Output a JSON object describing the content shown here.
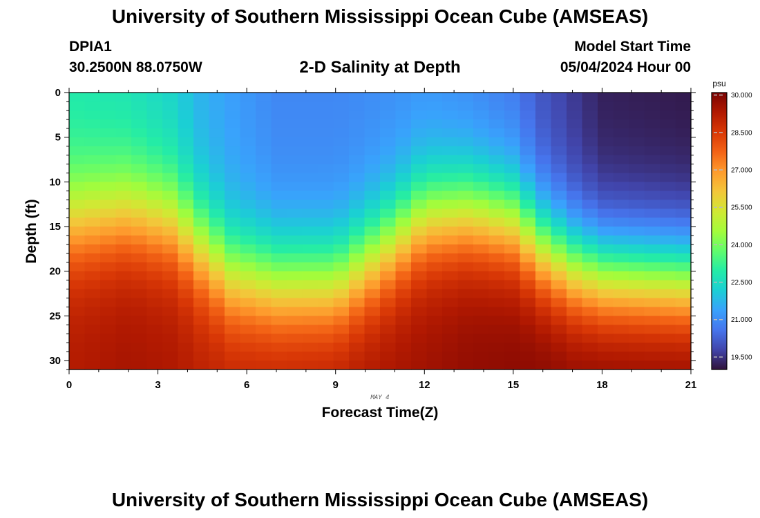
{
  "header": {
    "title": "University of Southern Mississippi Ocean Cube (AMSEAS)",
    "station_id": "DPIA1",
    "station_coords": "30.2500N  88.0750W",
    "plot_title": "2-D Salinity at Depth",
    "start_label": "Model Start Time",
    "start_value": "05/04/2024 Hour 00"
  },
  "footer": {
    "title": "University of Southern Mississippi Ocean Cube (AMSEAS)"
  },
  "chart_data": {
    "type": "heatmap",
    "title": "2-D Salinity at Depth",
    "xlabel": "Forecast Time(Z)",
    "ylabel": "Depth (ft)",
    "date_label": "MAY 4",
    "x_ticks": [
      0,
      3,
      6,
      9,
      12,
      15,
      18,
      21
    ],
    "y_ticks": [
      0,
      5,
      10,
      15,
      20,
      25,
      30
    ],
    "xlim": [
      0,
      21
    ],
    "ylim": [
      0,
      31
    ],
    "colorbar": {
      "unit": "psu",
      "min": 19.0,
      "max": 30.1,
      "ticks": [
        "30.000",
        "28.500",
        "27.000",
        "25.500",
        "24.000",
        "22.500",
        "21.000",
        "19.500"
      ],
      "colors": [
        "#30123b",
        "#4145ab",
        "#4675ed",
        "#39a2fc",
        "#1bcfd4",
        "#24eca6",
        "#61fc6c",
        "#a4fc3b",
        "#d1e834",
        "#f3c63a",
        "#fe9b2d",
        "#f36315",
        "#d93806",
        "#b11901",
        "#7a0403"
      ]
    },
    "profile_hours": [
      0,
      2,
      3.5,
      4.5,
      5.5,
      7,
      9,
      10.5,
      12,
      13.5,
      15,
      16,
      17,
      18,
      21
    ],
    "halocline_depth_ft": [
      14.5,
      13.5,
      14.5,
      17.5,
      20.5,
      21.5,
      21.5,
      18.0,
      14.0,
      13.5,
      14.5,
      17.5,
      19.5,
      20.5,
      21.0
    ],
    "surface_salinity_psu": [
      22.8,
      22.6,
      22.2,
      21.6,
      21.3,
      20.9,
      20.9,
      21.0,
      21.1,
      20.9,
      20.6,
      20.0,
      19.6,
      19.2,
      19.1
    ],
    "bottom_salinity_psu": [
      29.3,
      29.5,
      29.4,
      29.2,
      29.2,
      29.3,
      29.4,
      29.5,
      29.6,
      29.8,
      29.9,
      30.0,
      30.0,
      30.1,
      30.1
    ]
  }
}
